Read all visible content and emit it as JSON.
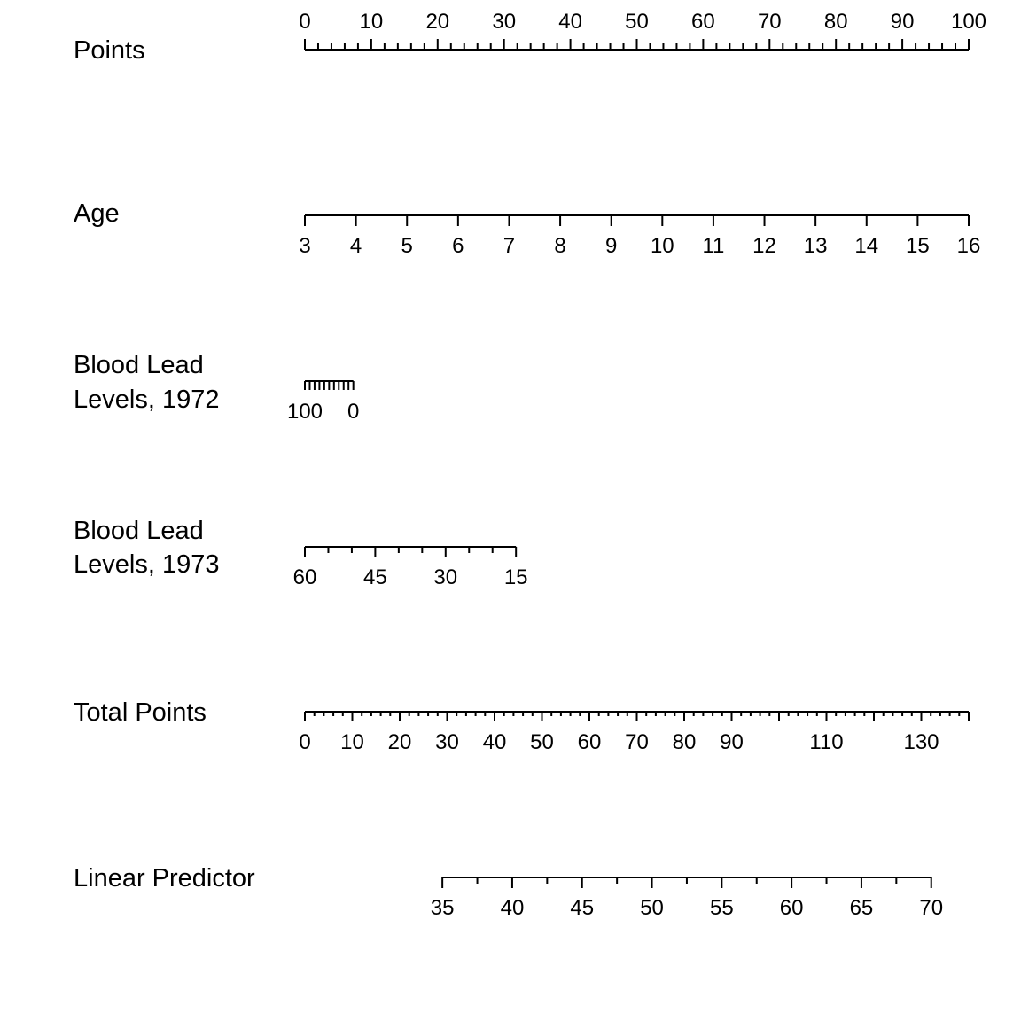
{
  "chart_data": {
    "type": "nomogram",
    "title": "",
    "ink_color": "#000000",
    "background_color": "#ffffff",
    "scales": [
      {
        "id": "points",
        "label": [
          "Points"
        ],
        "direction": "ascending",
        "range": [
          0,
          100
        ],
        "labels_position": "above",
        "minor_ticks": [
          0,
          2,
          4,
          6,
          8,
          10,
          12,
          14,
          16,
          18,
          20,
          22,
          24,
          26,
          28,
          30,
          32,
          34,
          36,
          38,
          40,
          42,
          44,
          46,
          48,
          50,
          52,
          54,
          56,
          58,
          60,
          62,
          64,
          66,
          68,
          70,
          72,
          74,
          76,
          78,
          80,
          82,
          84,
          86,
          88,
          90,
          92,
          94,
          96,
          98,
          100
        ],
        "major_ticks": [
          0,
          10,
          20,
          30,
          40,
          50,
          60,
          70,
          80,
          90,
          100
        ],
        "tick_labels": [
          "0",
          "10",
          "20",
          "30",
          "40",
          "50",
          "60",
          "70",
          "80",
          "90",
          "100"
        ]
      },
      {
        "id": "age",
        "label": [
          "Age"
        ],
        "direction": "ascending",
        "range": [
          3,
          16
        ],
        "points_range": [
          0,
          100
        ],
        "labels_position": "below",
        "minor_ticks": [],
        "major_ticks": [
          3,
          4,
          5,
          6,
          7,
          8,
          9,
          10,
          11,
          12,
          13,
          14,
          15,
          16
        ],
        "tick_labels": [
          "3",
          "4",
          "5",
          "6",
          "7",
          "8",
          "9",
          "10",
          "11",
          "12",
          "13",
          "14",
          "15",
          "16"
        ]
      },
      {
        "id": "lead1972",
        "label": [
          "Blood Lead",
          "Levels, 1972"
        ],
        "direction": "descending",
        "range": [
          100,
          0
        ],
        "points_range": [
          0,
          7.3
        ],
        "labels_position": "below",
        "minor_ticks": [
          100,
          90,
          80,
          70,
          60,
          50,
          40,
          30,
          20,
          10,
          0
        ],
        "major_ticks": [
          100,
          0
        ],
        "tick_labels": [
          "100",
          "0"
        ]
      },
      {
        "id": "lead1973",
        "label": [
          "Blood Lead",
          "Levels, 1973"
        ],
        "direction": "descending",
        "range": [
          60,
          15
        ],
        "points_range": [
          0,
          31.8
        ],
        "labels_position": "below",
        "minor_ticks": [
          55,
          50,
          40,
          35,
          25,
          20
        ],
        "major_ticks": [
          60,
          45,
          30,
          15
        ],
        "tick_labels": [
          "60",
          "45",
          "30",
          "15"
        ]
      },
      {
        "id": "total",
        "label": [
          "Total Points"
        ],
        "direction": "ascending",
        "range": [
          0,
          140
        ],
        "labels_position": "below",
        "minor_ticks": [
          0,
          2,
          4,
          6,
          8,
          10,
          12,
          14,
          16,
          18,
          20,
          22,
          24,
          26,
          28,
          30,
          32,
          34,
          36,
          38,
          40,
          42,
          44,
          46,
          48,
          50,
          52,
          54,
          56,
          58,
          60,
          62,
          64,
          66,
          68,
          70,
          72,
          74,
          76,
          78,
          80,
          82,
          84,
          86,
          88,
          90,
          92,
          94,
          96,
          98,
          100,
          102,
          104,
          106,
          108,
          110,
          112,
          114,
          116,
          118,
          120,
          122,
          124,
          126,
          128,
          130,
          132,
          134,
          136,
          138,
          140
        ],
        "major_ticks": [
          0,
          10,
          20,
          30,
          40,
          50,
          60,
          70,
          80,
          90,
          100,
          110,
          120,
          130,
          140
        ],
        "labeled_ticks": [
          0,
          10,
          20,
          30,
          40,
          50,
          60,
          70,
          80,
          90,
          110,
          130
        ],
        "tick_labels": [
          "0",
          "10",
          "20",
          "30",
          "40",
          "50",
          "60",
          "70",
          "80",
          "90",
          "110",
          "130"
        ]
      },
      {
        "id": "lp",
        "label": [
          "Linear Predictor"
        ],
        "direction": "ascending",
        "range": [
          35,
          70
        ],
        "total_points_range": [
          29,
          132.1
        ],
        "labels_position": "below",
        "minor_ticks": [
          35,
          37.5,
          40,
          42.5,
          45,
          47.5,
          50,
          52.5,
          55,
          57.5,
          60,
          62.5,
          65,
          67.5,
          70
        ],
        "major_ticks": [
          35,
          40,
          45,
          50,
          55,
          60,
          65,
          70
        ],
        "tick_labels": [
          "35",
          "40",
          "45",
          "50",
          "55",
          "60",
          "65",
          "70"
        ]
      }
    ]
  }
}
